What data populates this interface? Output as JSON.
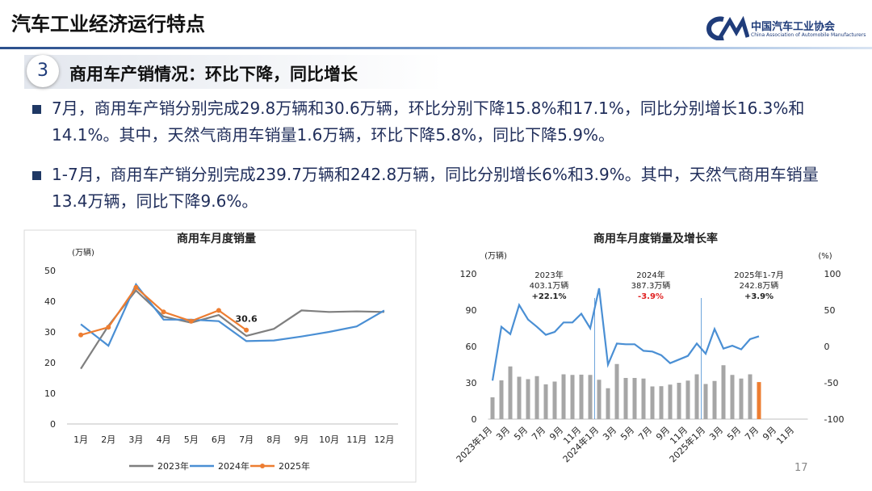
{
  "header": {
    "title": "汽车工业经济运行特点",
    "logo_name": "中国汽车工业协会",
    "logo_english": "China Association of Automobile Manufacturers"
  },
  "section": {
    "number": "3",
    "title": "商用车产销情况：环比下降，同比增长"
  },
  "bullets": [
    "7月，商用车产销分别完成29.8万辆和30.6万辆，环比分别下降15.8%和17.1%，同比分别增长16.3%和14.1%。其中，天然气商用车销量1.6万辆，环比下降5.8%，同比下降5.9%。",
    "1-7月，商用车产销分别完成239.7万辆和242.8万辆，同比分别增长6%和3.9%。其中，天然气商用车销量13.4万辆，同比下降9.6%。"
  ],
  "page_number": "17",
  "chart_data": [
    {
      "type": "line",
      "title": "商用车月度销量",
      "y_label": "(万辆)",
      "categories": [
        "1月",
        "2月",
        "3月",
        "4月",
        "5月",
        "6月",
        "7月",
        "8月",
        "9月",
        "10月",
        "11月",
        "12月"
      ],
      "ylim": [
        0,
        50
      ],
      "yticks": [
        0,
        10,
        20,
        30,
        40,
        50
      ],
      "legend": "bottom",
      "series": [
        {
          "name": "2023年",
          "color": "#7f7f7f",
          "values": [
            18,
            32,
            43.5,
            35,
            33,
            35.5,
            28.7,
            31,
            37,
            36.5,
            36.7,
            36.5
          ]
        },
        {
          "name": "2024年",
          "color": "#4a8fd4",
          "values": [
            32.5,
            25.5,
            45.5,
            34,
            34,
            33.5,
            27,
            27.2,
            28.5,
            30,
            31.8,
            37
          ]
        },
        {
          "name": "2025年",
          "color": "#ed7d31",
          "values": [
            29,
            31.5,
            44.5,
            36.5,
            33.5,
            37,
            30.6,
            null,
            null,
            null,
            null,
            null
          ],
          "marker": true,
          "data_labels": "last"
        }
      ]
    },
    {
      "type": "bar",
      "title": "商用车月度销量及增长率",
      "y_label": "(万辆)",
      "y2_label": "(%)",
      "categories": [
        "2023年1月",
        null,
        "3月",
        null,
        "5月",
        null,
        "7月",
        null,
        "9月",
        null,
        "11月",
        null,
        "2024年1月",
        null,
        "3月",
        null,
        "5月",
        null,
        "7月",
        null,
        "9月",
        null,
        "11月",
        null,
        "2025年1月",
        null,
        "3月",
        null,
        "5月",
        null,
        "7月",
        null,
        "9月",
        null,
        "11月",
        null
      ],
      "ylim": [
        0,
        120
      ],
      "yticks": [
        0,
        30,
        60,
        90,
        120
      ],
      "y2lim": [
        -100,
        100
      ],
      "y2ticks": [
        -100,
        -50,
        0,
        50,
        100
      ],
      "series": [
        {
          "type": "bar",
          "color": "#a6a6a6",
          "last_color": "#ed7d31",
          "values": [
            18,
            32,
            43.5,
            35,
            33,
            35.5,
            28.7,
            31,
            37,
            36.5,
            36.7,
            36.5,
            32.5,
            25.5,
            45.5,
            34,
            34,
            33.5,
            27,
            27.2,
            28.5,
            30,
            31.8,
            37,
            29,
            31.5,
            44.5,
            36.5,
            33.5,
            37,
            30.6,
            null,
            null,
            null,
            null,
            null
          ]
        },
        {
          "type": "line",
          "axis": "y2",
          "color": "#4a8fd4",
          "values": [
            -47,
            27,
            17,
            57,
            37,
            27,
            16,
            20,
            33,
            33,
            45,
            25,
            80,
            -25,
            4,
            3,
            3,
            -6,
            -7,
            -12,
            -23,
            -18,
            -13,
            4,
            -10,
            24,
            -3,
            1,
            -4,
            10,
            14,
            null,
            null,
            null,
            null,
            null
          ]
        }
      ],
      "annotations": [
        {
          "lines": [
            "2023年",
            "403.1万辆",
            "+22.1%"
          ],
          "colors": [
            "#222222",
            "#222222",
            "#222222"
          ]
        },
        {
          "lines": [
            "2024年",
            "387.3万辆",
            "-3.9%"
          ],
          "colors": [
            "#222222",
            "#222222",
            "#e02020"
          ]
        },
        {
          "lines": [
            "2025年1-7月",
            "242.8万辆",
            "+3.9%"
          ],
          "colors": [
            "#222222",
            "#222222",
            "#222222"
          ]
        }
      ]
    }
  ]
}
